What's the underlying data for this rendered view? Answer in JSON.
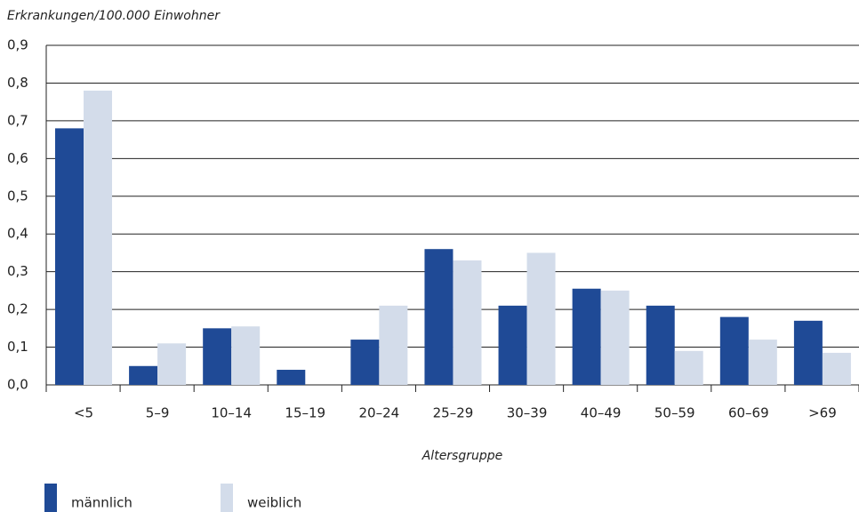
{
  "chart_data": {
    "type": "bar",
    "title": "Erkrankungen/100.000 Einwohner",
    "x_label": "Altersgruppe",
    "categories": [
      "<5",
      "5–9",
      "10–14",
      "15–19",
      "20–24",
      "25–29",
      "30–39",
      "40–49",
      "50–59",
      "60–69",
      ">69"
    ],
    "series": [
      {
        "name": "männlich",
        "color": "#1f4a96",
        "values": [
          0.68,
          0.05,
          0.15,
          0.04,
          0.12,
          0.36,
          0.21,
          0.255,
          0.21,
          0.18,
          0.17
        ]
      },
      {
        "name": "weiblich",
        "color": "#d3dcea",
        "values": [
          0.78,
          0.11,
          0.155,
          0,
          0.21,
          0.33,
          0.35,
          0.25,
          0.09,
          0.12,
          0.085
        ]
      }
    ],
    "ylim": [
      0,
      0.9
    ],
    "yticks": [
      {
        "value": 0,
        "label": "0,0"
      },
      {
        "value": 0.1,
        "label": "0,1"
      },
      {
        "value": 0.2,
        "label": "0,2"
      },
      {
        "value": 0.3,
        "label": "0,3"
      },
      {
        "value": 0.4,
        "label": "0,4"
      },
      {
        "value": 0.5,
        "label": "0,5"
      },
      {
        "value": 0.6,
        "label": "0,6"
      },
      {
        "value": 0.7,
        "label": "0,7"
      },
      {
        "value": 0.8,
        "label": "0,8"
      },
      {
        "value": 0.9,
        "label": "0,9"
      }
    ],
    "grid": true
  }
}
